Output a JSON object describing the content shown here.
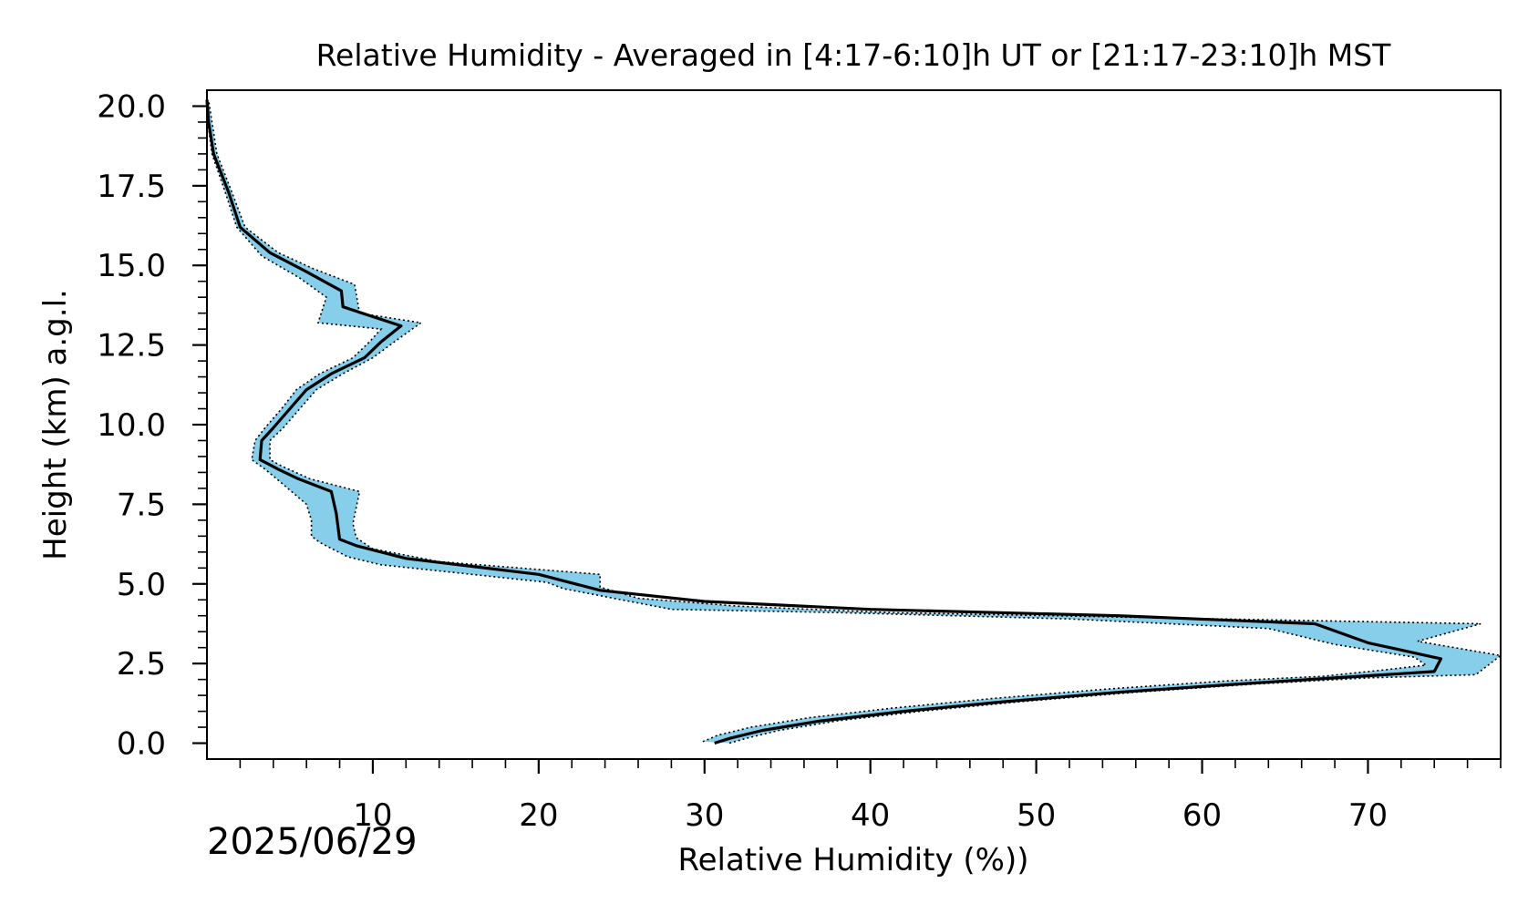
{
  "chart_data": {
    "type": "line",
    "title": "Relative Humidity - Averaged in [4:17-6:10]h UT or [21:17-23:10]h MST",
    "xlabel": "Relative Humidity (%))",
    "ylabel": "Height (km) a.g.l.",
    "date_label": "2025/06/29",
    "xlim": [
      0,
      78
    ],
    "ylim": [
      -0.5,
      20.5
    ],
    "x_ticks": [
      10,
      20,
      30,
      40,
      50,
      60,
      70
    ],
    "x_tick_labels": [
      "10",
      "20",
      "30",
      "40",
      "50",
      "60",
      "70"
    ],
    "y_ticks": [
      0,
      2.5,
      5,
      7.5,
      10,
      12.5,
      15,
      17.5,
      20
    ],
    "y_tick_labels": [
      "0.0",
      "2.5",
      "5.0",
      "7.5",
      "10.0",
      "12.5",
      "15.0",
      "17.5",
      "20.0"
    ],
    "grid": false,
    "colors": {
      "mean_line": "#000000",
      "band_fill": "#87ceeb",
      "band_edge": "#000000"
    },
    "series": [
      {
        "role": "mean",
        "points": [
          [
            30.6,
            0.0
          ],
          [
            31.5,
            0.15
          ],
          [
            33.5,
            0.4
          ],
          [
            37.0,
            0.7
          ],
          [
            42.0,
            1.0
          ],
          [
            48.0,
            1.3
          ],
          [
            55.0,
            1.6
          ],
          [
            62.0,
            1.85
          ],
          [
            68.0,
            2.05
          ],
          [
            74.0,
            2.25
          ],
          [
            74.4,
            2.65
          ],
          [
            70.0,
            3.15
          ],
          [
            66.8,
            3.75
          ],
          [
            55.0,
            4.0
          ],
          [
            40.0,
            4.2
          ],
          [
            30.0,
            4.45
          ],
          [
            23.7,
            4.8
          ],
          [
            20.0,
            5.3
          ],
          [
            12.0,
            5.8
          ],
          [
            9.0,
            6.2
          ],
          [
            8.0,
            6.4
          ],
          [
            7.8,
            7.2
          ],
          [
            7.5,
            7.9
          ],
          [
            5.5,
            8.3
          ],
          [
            4.3,
            8.6
          ],
          [
            3.2,
            8.9
          ],
          [
            3.3,
            9.5
          ],
          [
            4.0,
            9.9
          ],
          [
            5.0,
            10.5
          ],
          [
            6.0,
            11.1
          ],
          [
            7.5,
            11.6
          ],
          [
            9.5,
            12.1
          ],
          [
            10.5,
            12.6
          ],
          [
            11.7,
            13.1
          ],
          [
            8.2,
            13.7
          ],
          [
            8.1,
            14.2
          ],
          [
            6.0,
            14.8
          ],
          [
            3.8,
            15.4
          ],
          [
            2.0,
            16.2
          ],
          [
            1.3,
            17.3
          ],
          [
            0.4,
            18.5
          ],
          [
            0.1,
            19.5
          ],
          [
            0.0,
            20.2
          ]
        ]
      },
      {
        "role": "upper",
        "points": [
          [
            31.5,
            0.0
          ],
          [
            32.5,
            0.15
          ],
          [
            34.5,
            0.4
          ],
          [
            38.0,
            0.7
          ],
          [
            43.0,
            1.0
          ],
          [
            49.0,
            1.3
          ],
          [
            56.0,
            1.6
          ],
          [
            63.0,
            1.85
          ],
          [
            70.0,
            2.05
          ],
          [
            76.5,
            2.15
          ],
          [
            78.0,
            2.75
          ],
          [
            73.0,
            3.2
          ],
          [
            76.8,
            3.75
          ],
          [
            56.0,
            3.95
          ],
          [
            41.0,
            4.1
          ],
          [
            32.0,
            4.3
          ],
          [
            26.0,
            4.55
          ],
          [
            23.7,
            4.9
          ],
          [
            23.7,
            5.3
          ],
          [
            14.0,
            5.7
          ],
          [
            10.0,
            6.1
          ],
          [
            9.0,
            6.45
          ],
          [
            8.8,
            6.9
          ],
          [
            9.2,
            7.9
          ],
          [
            6.2,
            8.3
          ],
          [
            4.5,
            8.7
          ],
          [
            3.8,
            8.9
          ],
          [
            3.8,
            9.5
          ],
          [
            4.6,
            9.9
          ],
          [
            5.6,
            10.5
          ],
          [
            6.6,
            11.1
          ],
          [
            8.2,
            11.6
          ],
          [
            10.0,
            12.1
          ],
          [
            11.3,
            12.6
          ],
          [
            12.9,
            13.2
          ],
          [
            9.2,
            13.5
          ],
          [
            8.9,
            14.4
          ],
          [
            6.4,
            14.9
          ],
          [
            4.3,
            15.4
          ],
          [
            2.3,
            16.2
          ],
          [
            1.5,
            17.3
          ],
          [
            0.6,
            18.5
          ],
          [
            0.3,
            19.5
          ],
          [
            0.1,
            20.2
          ]
        ]
      },
      {
        "role": "lower",
        "points": [
          [
            29.9,
            0.05
          ],
          [
            30.8,
            0.25
          ],
          [
            32.8,
            0.5
          ],
          [
            36.3,
            0.8
          ],
          [
            41.3,
            1.1
          ],
          [
            47.3,
            1.4
          ],
          [
            54.3,
            1.7
          ],
          [
            61.3,
            1.95
          ],
          [
            67.3,
            2.1
          ],
          [
            71.0,
            2.3
          ],
          [
            73.5,
            2.45
          ],
          [
            72.8,
            2.7
          ],
          [
            68.0,
            3.1
          ],
          [
            64.0,
            3.6
          ],
          [
            52.0,
            3.9
          ],
          [
            38.0,
            4.1
          ],
          [
            28.0,
            4.2
          ],
          [
            21.5,
            4.85
          ],
          [
            20.5,
            5.05
          ],
          [
            10.5,
            5.6
          ],
          [
            8.5,
            5.85
          ],
          [
            6.8,
            6.3
          ],
          [
            6.3,
            6.5
          ],
          [
            6.3,
            7.0
          ],
          [
            6.0,
            7.5
          ],
          [
            4.2,
            8.3
          ],
          [
            3.5,
            8.6
          ],
          [
            2.7,
            8.9
          ],
          [
            2.9,
            9.5
          ],
          [
            3.5,
            9.9
          ],
          [
            4.5,
            10.5
          ],
          [
            5.4,
            11.1
          ],
          [
            6.8,
            11.6
          ],
          [
            8.8,
            12.1
          ],
          [
            9.8,
            12.6
          ],
          [
            10.5,
            13.0
          ],
          [
            6.7,
            13.2
          ],
          [
            7.2,
            14.0
          ],
          [
            5.6,
            14.6
          ],
          [
            3.3,
            15.3
          ],
          [
            1.8,
            16.2
          ],
          [
            1.1,
            17.3
          ],
          [
            0.3,
            18.5
          ],
          [
            0.05,
            19.5
          ],
          [
            0.0,
            20.2
          ]
        ]
      }
    ]
  }
}
